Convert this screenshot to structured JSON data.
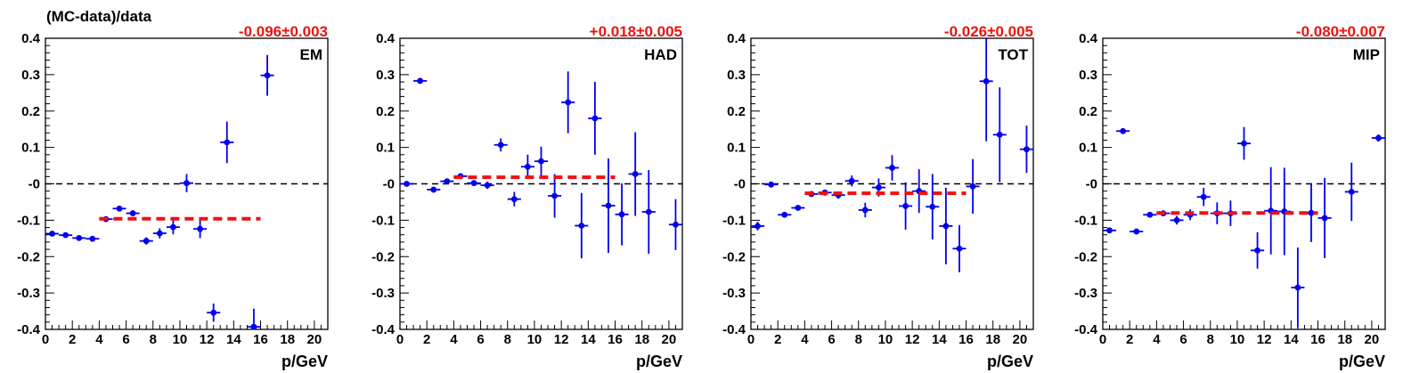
{
  "figure": {
    "ytitle": "(MC-data)/data",
    "xtitle": "p/GeV"
  },
  "colors": {
    "points": "#0000ee",
    "fit": "#ee1111",
    "zero_line": "#000000",
    "axis": "#000000"
  },
  "chart_data": [
    {
      "type": "scatter",
      "title": "EM",
      "fit_label": "-0.096±0.003",
      "xlabel": "p/GeV",
      "ylabel": "(MC-data)/data",
      "xlim": [
        0,
        21
      ],
      "ylim": [
        -0.4,
        0.4
      ],
      "xticks": [
        0,
        2,
        4,
        6,
        8,
        10,
        12,
        14,
        16,
        18,
        20
      ],
      "yticks": [
        -0.4,
        -0.3,
        -0.2,
        -0.1,
        0,
        0.1,
        0.2,
        0.3,
        0.4
      ],
      "ytick_labels": [
        "-0.4",
        "-0.3",
        "-0.2",
        "-0.1",
        "-0",
        "0.1",
        "0.2",
        "0.3",
        "0.4"
      ],
      "grid": false,
      "zero_line": true,
      "points": [
        {
          "x": 0.5,
          "y": -0.137,
          "err": 0.004
        },
        {
          "x": 1.5,
          "y": -0.141,
          "err": 0.004
        },
        {
          "x": 2.5,
          "y": -0.149,
          "err": 0.004
        },
        {
          "x": 3.5,
          "y": -0.151,
          "err": 0.004
        },
        {
          "x": 4.5,
          "y": -0.097,
          "err": 0.006
        },
        {
          "x": 5.5,
          "y": -0.068,
          "err": 0.006
        },
        {
          "x": 6.5,
          "y": -0.081,
          "err": 0.008
        },
        {
          "x": 7.5,
          "y": -0.157,
          "err": 0.01
        },
        {
          "x": 8.5,
          "y": -0.136,
          "err": 0.014
        },
        {
          "x": 9.5,
          "y": -0.119,
          "err": 0.02
        },
        {
          "x": 10.5,
          "y": 0.002,
          "err": 0.025
        },
        {
          "x": 11.5,
          "y": -0.124,
          "err": 0.025
        },
        {
          "x": 12.5,
          "y": -0.354,
          "err": 0.025
        },
        {
          "x": 13.5,
          "y": 0.114,
          "err": 0.057
        },
        {
          "x": 15.5,
          "y": -0.393,
          "err": 0.05
        },
        {
          "x": 16.5,
          "y": 0.298,
          "err": 0.056
        }
      ],
      "fit": {
        "x_start": 4,
        "x_end": 16,
        "y": -0.096
      }
    },
    {
      "type": "scatter",
      "title": "HAD",
      "fit_label": "+0.018±0.005",
      "xlabel": "p/GeV",
      "xlim": [
        0,
        21
      ],
      "ylim": [
        -0.4,
        0.4
      ],
      "xticks": [
        0,
        2,
        4,
        6,
        8,
        10,
        12,
        14,
        16,
        18,
        20
      ],
      "yticks": [
        -0.4,
        -0.3,
        -0.2,
        -0.1,
        0,
        0.1,
        0.2,
        0.3,
        0.4
      ],
      "ytick_labels": [
        "-0.4",
        "-0.3",
        "-0.2",
        "-0.1",
        "-0",
        "0.1",
        "0.2",
        "0.3",
        "0.4"
      ],
      "grid": false,
      "zero_line": true,
      "points": [
        {
          "x": 0.5,
          "y": 0.0,
          "err": 0.006
        },
        {
          "x": 1.5,
          "y": 0.283,
          "err": 0.006
        },
        {
          "x": 2.5,
          "y": -0.016,
          "err": 0.006
        },
        {
          "x": 3.5,
          "y": 0.007,
          "err": 0.006
        },
        {
          "x": 4.5,
          "y": 0.021,
          "err": 0.006
        },
        {
          "x": 5.5,
          "y": 0.002,
          "err": 0.008
        },
        {
          "x": 6.5,
          "y": -0.004,
          "err": 0.01
        },
        {
          "x": 7.5,
          "y": 0.107,
          "err": 0.018
        },
        {
          "x": 8.5,
          "y": -0.042,
          "err": 0.02
        },
        {
          "x": 9.5,
          "y": 0.047,
          "err": 0.033
        },
        {
          "x": 10.5,
          "y": 0.062,
          "err": 0.04
        },
        {
          "x": 11.5,
          "y": -0.033,
          "err": 0.06
        },
        {
          "x": 12.5,
          "y": 0.224,
          "err": 0.085
        },
        {
          "x": 13.5,
          "y": -0.115,
          "err": 0.09
        },
        {
          "x": 14.5,
          "y": 0.18,
          "err": 0.1
        },
        {
          "x": 15.5,
          "y": -0.06,
          "err": 0.13
        },
        {
          "x": 16.5,
          "y": -0.084,
          "err": 0.085
        },
        {
          "x": 17.5,
          "y": 0.027,
          "err": 0.115
        },
        {
          "x": 18.5,
          "y": -0.077,
          "err": 0.115
        },
        {
          "x": 20.5,
          "y": -0.112,
          "err": 0.07
        }
      ],
      "fit": {
        "x_start": 4,
        "x_end": 16,
        "y": 0.018
      }
    },
    {
      "type": "scatter",
      "title": "TOT",
      "fit_label": "-0.026±0.005",
      "xlabel": "p/GeV",
      "xlim": [
        0,
        21
      ],
      "ylim": [
        -0.4,
        0.4
      ],
      "xticks": [
        0,
        2,
        4,
        6,
        8,
        10,
        12,
        14,
        16,
        18,
        20
      ],
      "yticks": [
        -0.4,
        -0.3,
        -0.2,
        -0.1,
        0,
        0.1,
        0.2,
        0.3,
        0.4
      ],
      "ytick_labels": [
        "-0.4",
        "-0.3",
        "-0.2",
        "-0.1",
        "-0",
        "0.1",
        "0.2",
        "0.3",
        "0.4"
      ],
      "grid": false,
      "zero_line": true,
      "points": [
        {
          "x": 0.5,
          "y": -0.116,
          "err": 0.012
        },
        {
          "x": 1.5,
          "y": -0.002,
          "err": 0.005
        },
        {
          "x": 2.5,
          "y": -0.085,
          "err": 0.005
        },
        {
          "x": 3.5,
          "y": -0.066,
          "err": 0.005
        },
        {
          "x": 4.5,
          "y": -0.028,
          "err": 0.006
        },
        {
          "x": 5.5,
          "y": -0.024,
          "err": 0.007
        },
        {
          "x": 6.5,
          "y": -0.031,
          "err": 0.01
        },
        {
          "x": 7.5,
          "y": 0.008,
          "err": 0.015
        },
        {
          "x": 8.5,
          "y": -0.072,
          "err": 0.02
        },
        {
          "x": 9.5,
          "y": -0.01,
          "err": 0.025
        },
        {
          "x": 10.5,
          "y": 0.044,
          "err": 0.035
        },
        {
          "x": 11.5,
          "y": -0.061,
          "err": 0.065
        },
        {
          "x": 12.5,
          "y": -0.02,
          "err": 0.06
        },
        {
          "x": 13.5,
          "y": -0.063,
          "err": 0.09
        },
        {
          "x": 14.5,
          "y": -0.116,
          "err": 0.105
        },
        {
          "x": 15.5,
          "y": -0.178,
          "err": 0.065
        },
        {
          "x": 16.5,
          "y": -0.007,
          "err": 0.075
        },
        {
          "x": 17.5,
          "y": 0.282,
          "err": 0.165
        },
        {
          "x": 18.5,
          "y": 0.135,
          "err": 0.13
        },
        {
          "x": 20.5,
          "y": 0.095,
          "err": 0.065
        }
      ],
      "fit": {
        "x_start": 4,
        "x_end": 16,
        "y": -0.026
      }
    },
    {
      "type": "scatter",
      "title": "MIP",
      "fit_label": "-0.080±0.007",
      "xlabel": "p/GeV",
      "xlim": [
        0,
        21
      ],
      "ylim": [
        -0.4,
        0.4
      ],
      "xticks": [
        0,
        2,
        4,
        6,
        8,
        10,
        12,
        14,
        16,
        18,
        20
      ],
      "yticks": [
        -0.4,
        -0.3,
        -0.2,
        -0.1,
        0,
        0.1,
        0.2,
        0.3,
        0.4
      ],
      "ytick_labels": [
        "-0.4",
        "-0.3",
        "-0.2",
        "-0.1",
        "-0",
        "0.1",
        "0.2",
        "0.3",
        "0.4"
      ],
      "grid": false,
      "zero_line": true,
      "points": [
        {
          "x": 0.5,
          "y": -0.128,
          "err": 0.008
        },
        {
          "x": 1.5,
          "y": 0.145,
          "err": 0.005
        },
        {
          "x": 2.5,
          "y": -0.131,
          "err": 0.005
        },
        {
          "x": 3.5,
          "y": -0.085,
          "err": 0.006
        },
        {
          "x": 4.5,
          "y": -0.081,
          "err": 0.008
        },
        {
          "x": 5.5,
          "y": -0.1,
          "err": 0.012
        },
        {
          "x": 6.5,
          "y": -0.085,
          "err": 0.015
        },
        {
          "x": 7.5,
          "y": -0.036,
          "err": 0.025
        },
        {
          "x": 8.5,
          "y": -0.081,
          "err": 0.03
        },
        {
          "x": 9.5,
          "y": -0.081,
          "err": 0.035
        },
        {
          "x": 10.5,
          "y": 0.111,
          "err": 0.045
        },
        {
          "x": 11.5,
          "y": -0.183,
          "err": 0.05
        },
        {
          "x": 12.5,
          "y": -0.074,
          "err": 0.12
        },
        {
          "x": 13.5,
          "y": -0.076,
          "err": 0.12
        },
        {
          "x": 14.5,
          "y": -0.285,
          "err": 0.11
        },
        {
          "x": 15.5,
          "y": -0.08,
          "err": 0.08
        },
        {
          "x": 16.5,
          "y": -0.094,
          "err": 0.11
        },
        {
          "x": 18.5,
          "y": -0.022,
          "err": 0.08
        },
        {
          "x": 20.5,
          "y": 0.126,
          "err": 0.01
        }
      ],
      "fit": {
        "x_start": 4,
        "x_end": 16,
        "y": -0.08
      }
    }
  ]
}
